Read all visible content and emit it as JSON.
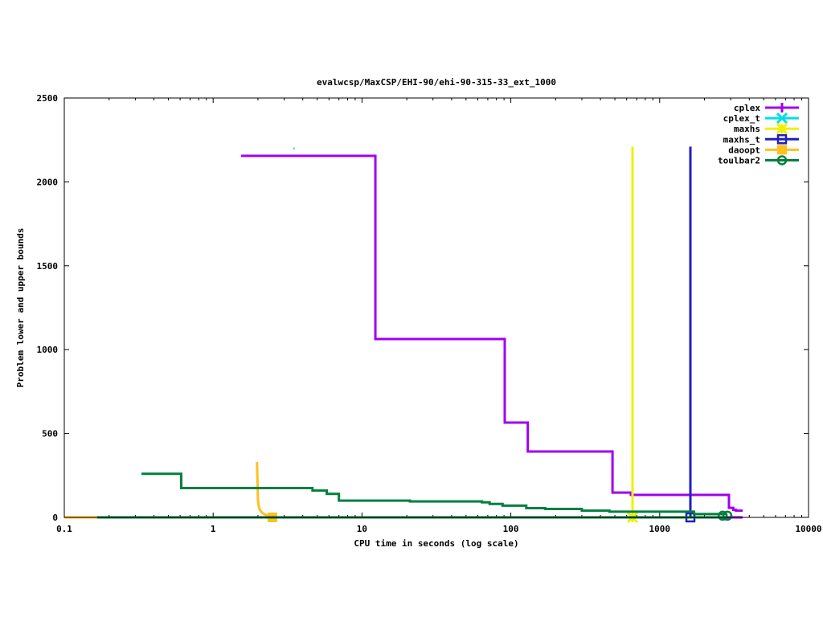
{
  "chart_data": {
    "type": "line",
    "title": "evalwcsp/MaxCSP/EHI-90/ehi-90-315-33_ext_1000",
    "xlabel": "CPU time in seconds (log scale)",
    "ylabel": "Problem lower and upper bounds",
    "xscale": "log",
    "xlim": [
      0.1,
      10000
    ],
    "ylim": [
      0,
      2500
    ],
    "xticks": [
      0.1,
      1,
      10,
      100,
      1000,
      10000
    ],
    "xtick_labels": [
      "0.1",
      "1",
      "10",
      "100",
      "1000",
      "10000"
    ],
    "yticks": [
      0,
      500,
      1000,
      1500,
      2000,
      2500
    ],
    "ytick_labels": [
      "0",
      "500",
      "1000",
      "1500",
      "2000",
      "2500"
    ],
    "grid": false,
    "legend_position": "top-right",
    "series": [
      {
        "name": "cplex",
        "color": "#a000f0",
        "marker": "plus",
        "upper": [
          [
            1.54,
            2155
          ],
          [
            12.3,
            2155
          ],
          [
            12.3,
            1063
          ],
          [
            91,
            1063
          ],
          [
            91,
            565
          ],
          [
            130,
            565
          ],
          [
            130,
            393
          ],
          [
            482,
            393
          ],
          [
            482,
            148
          ],
          [
            640,
            148
          ],
          [
            640,
            134
          ],
          [
            2920,
            134
          ],
          [
            2920,
            57
          ],
          [
            3120,
            57
          ],
          [
            3120,
            45
          ],
          [
            3250,
            45
          ],
          [
            3250,
            40
          ],
          [
            3610,
            40
          ]
        ],
        "lower": [
          [
            2700,
            0
          ],
          [
            3610,
            0
          ]
        ]
      },
      {
        "name": "cplex_t",
        "color": "#00e0e0",
        "marker": "x",
        "upper": [
          [
            3.5,
            2200
          ],
          [
            3.5,
            2200
          ]
        ],
        "lower": []
      },
      {
        "name": "maxhs",
        "color": "#f0f000",
        "marker": "star",
        "upper": [
          [
            657,
            2210
          ],
          [
            657,
            0
          ]
        ],
        "lower": [],
        "final": [
          657,
          0
        ]
      },
      {
        "name": "maxhs_t",
        "color": "#2020c0",
        "marker": "square",
        "upper": [
          [
            1608,
            2210
          ],
          [
            1608,
            0
          ]
        ],
        "lower": [],
        "final": [
          1608,
          0
        ]
      },
      {
        "name": "daoopt",
        "color": "#ffc020",
        "marker": "filled-square",
        "upper": [
          [
            1.97,
            330
          ],
          [
            1.98,
            260
          ],
          [
            2.0,
            100
          ],
          [
            2.03,
            60
          ],
          [
            2.08,
            40
          ],
          [
            2.15,
            25
          ],
          [
            2.3,
            12
          ],
          [
            2.5,
            10
          ]
        ],
        "lower": [
          [
            0.1,
            0
          ],
          [
            0.166,
            0
          ]
        ],
        "final": [
          2.5,
          0
        ]
      },
      {
        "name": "toulbar2",
        "color": "#008040",
        "marker": "circle",
        "upper": [
          [
            0.33,
            260
          ],
          [
            0.61,
            260
          ],
          [
            0.61,
            175
          ],
          [
            4.65,
            175
          ],
          [
            4.65,
            160
          ],
          [
            5.8,
            160
          ],
          [
            5.8,
            140
          ],
          [
            7.0,
            140
          ],
          [
            7.0,
            100
          ],
          [
            21,
            100
          ],
          [
            21,
            95
          ],
          [
            64,
            95
          ],
          [
            64,
            90
          ],
          [
            72,
            90
          ],
          [
            72,
            80
          ],
          [
            88,
            80
          ],
          [
            88,
            70
          ],
          [
            127,
            70
          ],
          [
            127,
            55
          ],
          [
            170,
            55
          ],
          [
            170,
            50
          ],
          [
            300,
            50
          ],
          [
            300,
            40
          ],
          [
            460,
            40
          ],
          [
            460,
            34
          ],
          [
            1700,
            34
          ],
          [
            1700,
            20
          ],
          [
            2800,
            20
          ]
        ],
        "lower": [
          [
            0.166,
            0
          ],
          [
            2800,
            0
          ]
        ],
        "final": [
          2650,
          10
        ],
        "final2": [
          2850,
          10
        ]
      }
    ]
  }
}
